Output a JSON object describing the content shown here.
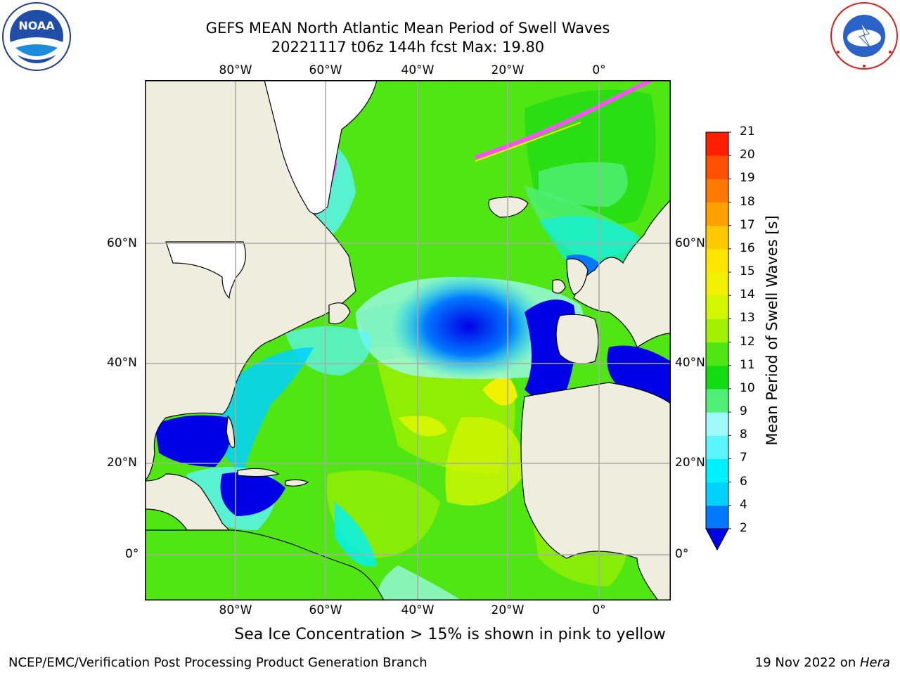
{
  "title": {
    "line1": "GEFS MEAN North Atlantic Mean Period of Swell Waves",
    "line2": "20221117 t06z 144h fcst   Max: 19.80"
  },
  "logos": {
    "left": {
      "icon": "noaa-logo",
      "text": "NOAA"
    },
    "right": {
      "icon": "national-weather-service-logo",
      "ring_text": "NATIONAL WEATHER SERVICE"
    }
  },
  "map": {
    "lon_labels": [
      "80°W",
      "60°W",
      "40°W",
      "20°W",
      "0°"
    ],
    "lat_labels": [
      "60°N",
      "40°N",
      "20°N",
      "0°"
    ],
    "grid": true,
    "land_color": "#efeddd"
  },
  "colorbar": {
    "label": "Mean Period of Swell Waves [s]",
    "ticks": [
      "2",
      "4",
      "6",
      "7",
      "8",
      "9",
      "10",
      "11",
      "12",
      "13",
      "14",
      "15",
      "16",
      "17",
      "18",
      "19",
      "20",
      "21"
    ],
    "colors": [
      "#0000e6",
      "#0078ff",
      "#00d2ff",
      "#00f0ff",
      "#5af5ff",
      "#a0fafa",
      "#50f078",
      "#14dc14",
      "#50e614",
      "#a0f000",
      "#d2f500",
      "#f0f000",
      "#ffe600",
      "#ffc800",
      "#ffa000",
      "#ff7800",
      "#ff5000",
      "#ff1e00",
      "#f00000"
    ]
  },
  "note": "Sea Ice Concentration > 15% is shown in pink to yellow",
  "footer": {
    "left": "NCEP/EMC/Verification Post Processing Product Generation Branch",
    "right_prefix": "19 Nov 2022 on ",
    "right_host": "Hera"
  }
}
